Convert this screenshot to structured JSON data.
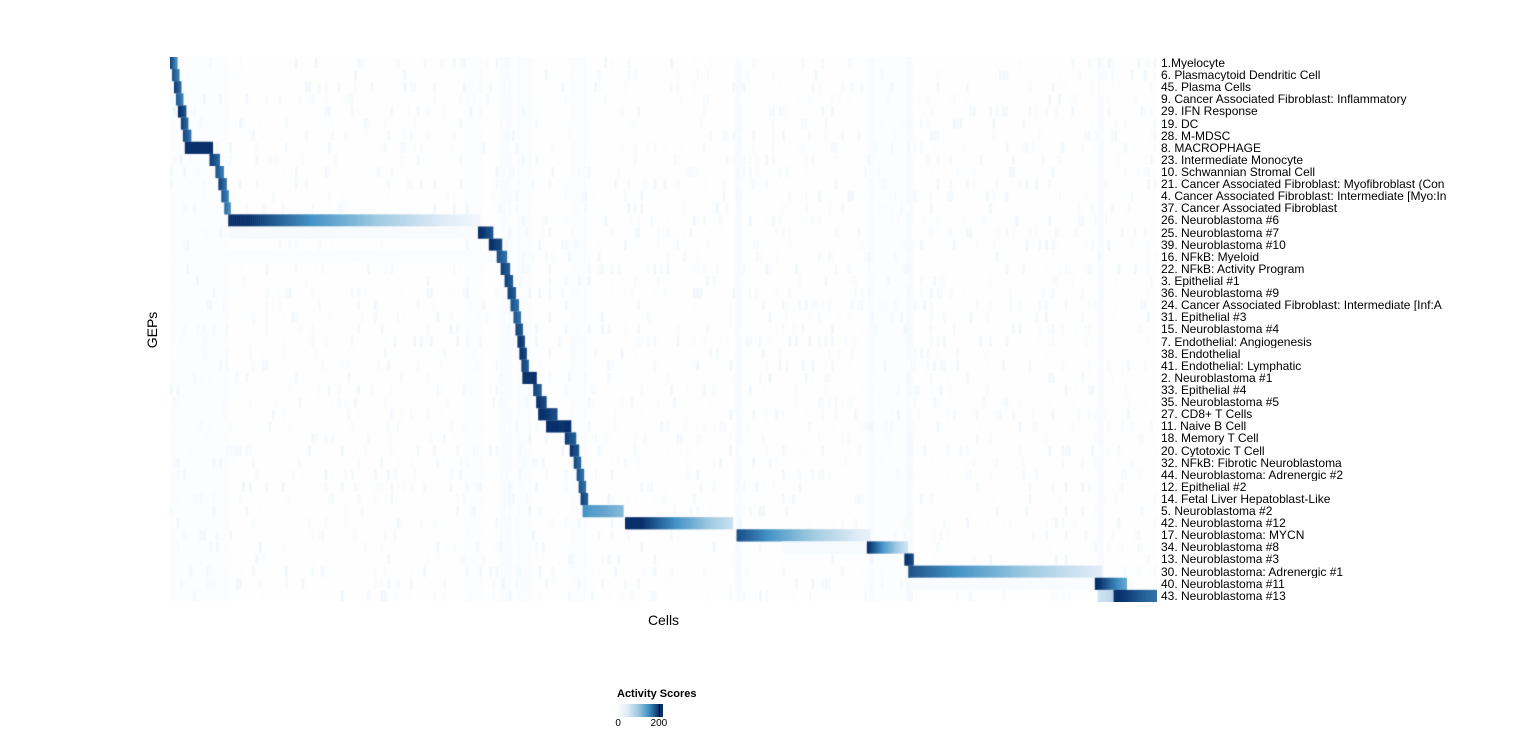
{
  "chart_data": {
    "type": "heatmap",
    "title": "",
    "xlabel": "Cells",
    "ylabel": "GEPs",
    "colorbar": {
      "label": "Activity Scores",
      "min": 0,
      "max": 200
    },
    "value_range": [
      0,
      200
    ],
    "color_scale": {
      "stops": [
        [
          0,
          "#ffffff"
        ],
        [
          0.25,
          "#deebf7"
        ],
        [
          0.5,
          "#9ecae1"
        ],
        [
          0.75,
          "#4292c6"
        ],
        [
          1,
          "#08306b"
        ]
      ]
    },
    "legend_position": "bottom",
    "x_tick_labels": [],
    "rows": [
      {
        "label": "1.Myelocyte",
        "blocks": [
          [
            0.0,
            0.007,
            190,
            150
          ]
        ]
      },
      {
        "label": "6. Plasmacytoid Dendritic Cell",
        "blocks": [
          [
            0.002,
            0.009,
            185,
            160
          ]
        ]
      },
      {
        "label": "45. Plasma Cells",
        "blocks": [
          [
            0.004,
            0.011,
            195,
            170
          ]
        ]
      },
      {
        "label": "9. Cancer Associated Fibroblast: Inflammatory",
        "blocks": [
          [
            0.006,
            0.013,
            180,
            160
          ]
        ]
      },
      {
        "label": "29. IFN Response",
        "blocks": [
          [
            0.008,
            0.016,
            205,
            180
          ]
        ]
      },
      {
        "label": "19. DC",
        "blocks": [
          [
            0.011,
            0.018,
            195,
            170
          ]
        ]
      },
      {
        "label": "28. M-MDSC",
        "blocks": [
          [
            0.013,
            0.021,
            190,
            165
          ]
        ]
      },
      {
        "label": "8. MACROPHAGE",
        "blocks": [
          [
            0.015,
            0.043,
            215,
            200
          ]
        ]
      },
      {
        "label": "23. Intermediate Monocyte",
        "blocks": [
          [
            0.04,
            0.05,
            195,
            170
          ]
        ]
      },
      {
        "label": "10. Schwannian Stromal Cell",
        "blocks": [
          [
            0.046,
            0.054,
            185,
            160
          ]
        ]
      },
      {
        "label": "21. Cancer Associated Fibroblast: Myofibroblast (Con",
        "blocks": [
          [
            0.049,
            0.057,
            195,
            165
          ]
        ]
      },
      {
        "label": "4. Cancer Associated Fibroblast: Intermediate [Myo:In",
        "blocks": [
          [
            0.052,
            0.059,
            185,
            155
          ]
        ]
      },
      {
        "label": "37. Cancer Associated Fibroblast",
        "blocks": [
          [
            0.055,
            0.061,
            175,
            150
          ]
        ]
      },
      {
        "label": "26. Neuroblastoma #6",
        "blocks": [
          [
            0.059,
            0.314,
            215,
            20
          ]
        ]
      },
      {
        "label": "25. Neuroblastoma #7",
        "blocks": [
          [
            0.06,
            0.31,
            14,
            8
          ],
          [
            0.312,
            0.327,
            205,
            180
          ]
        ]
      },
      {
        "label": "39. Neuroblastoma #10",
        "blocks": [
          [
            0.323,
            0.336,
            205,
            185
          ]
        ]
      },
      {
        "label": "16. NFkB: Myeloid",
        "blocks": [
          [
            0.0,
            0.33,
            7,
            7
          ],
          [
            0.331,
            0.341,
            185,
            165
          ]
        ]
      },
      {
        "label": "22. NFkB: Activity Program",
        "blocks": [
          [
            0.335,
            0.344,
            195,
            175
          ]
        ]
      },
      {
        "label": "3. Epithelial #1",
        "blocks": [
          [
            0.339,
            0.347,
            195,
            175
          ]
        ]
      },
      {
        "label": "36. Neuroblastoma #9",
        "blocks": [
          [
            0.342,
            0.35,
            195,
            175
          ]
        ]
      },
      {
        "label": "24. Cancer Associated Fibroblast: Intermediate [Inf:A",
        "blocks": [
          [
            0.345,
            0.353,
            185,
            165
          ]
        ]
      },
      {
        "label": "31. Epithelial #3",
        "blocks": [
          [
            0.348,
            0.355,
            185,
            165
          ]
        ]
      },
      {
        "label": "15. Neuroblastoma #4",
        "blocks": [
          [
            0.35,
            0.357,
            195,
            175
          ]
        ]
      },
      {
        "label": "7. Endothelial: Angiogenesis",
        "blocks": [
          [
            0.352,
            0.359,
            205,
            185
          ]
        ]
      },
      {
        "label": "38. Endothelial",
        "blocks": [
          [
            0.354,
            0.361,
            205,
            185
          ]
        ]
      },
      {
        "label": "41. Endothelial: Lymphatic",
        "blocks": [
          [
            0.356,
            0.363,
            195,
            175
          ]
        ]
      },
      {
        "label": "2. Neuroblastoma #1",
        "blocks": [
          [
            0.357,
            0.371,
            215,
            200
          ]
        ]
      },
      {
        "label": "33. Epithelial #4",
        "blocks": [
          [
            0.368,
            0.376,
            195,
            175
          ]
        ]
      },
      {
        "label": "35. Neuroblastoma #5",
        "blocks": [
          [
            0.371,
            0.381,
            205,
            185
          ]
        ]
      },
      {
        "label": "27. CD8+ T Cells",
        "blocks": [
          [
            0.373,
            0.392,
            205,
            185
          ]
        ]
      },
      {
        "label": "11. Naive B Cell",
        "blocks": [
          [
            0.381,
            0.406,
            215,
            200
          ]
        ]
      },
      {
        "label": "18. Memory T Cell",
        "blocks": [
          [
            0.4,
            0.411,
            195,
            175
          ]
        ]
      },
      {
        "label": "20. Cytotoxic T Cell",
        "blocks": [
          [
            0.405,
            0.414,
            200,
            180
          ]
        ]
      },
      {
        "label": "32. NFkB: Fibrotic Neuroblastoma",
        "blocks": [
          [
            0.409,
            0.416,
            190,
            170
          ]
        ]
      },
      {
        "label": "44. Neuroblastoma: Adrenergic #2",
        "blocks": [
          [
            0.412,
            0.419,
            185,
            165
          ]
        ]
      },
      {
        "label": "12. Epithelial #2",
        "blocks": [
          [
            0.414,
            0.421,
            185,
            165
          ]
        ]
      },
      {
        "label": "14. Fetal Liver Hepatoblast-Like",
        "blocks": [
          [
            0.416,
            0.423,
            195,
            175
          ]
        ]
      },
      {
        "label": "5. Neuroblastoma #2",
        "blocks": [
          [
            0.418,
            0.459,
            150,
            115
          ]
        ]
      },
      {
        "label": "42. Neuroblastoma #12",
        "blocks": [
          [
            0.461,
            0.57,
            225,
            65
          ]
        ]
      },
      {
        "label": "17. Neuroblastoma: MYCN",
        "blocks": [
          [
            0.574,
            0.709,
            185,
            35
          ]
        ]
      },
      {
        "label": "34. Neuroblastoma #8",
        "blocks": [
          [
            0.62,
            0.705,
            12,
            12
          ],
          [
            0.706,
            0.747,
            205,
            60
          ]
        ]
      },
      {
        "label": "13. Neuroblastoma #3",
        "blocks": [
          [
            0.744,
            0.753,
            205,
            185
          ]
        ]
      },
      {
        "label": "30. Neuroblastoma: Adrenergic #1",
        "blocks": [
          [
            0.748,
            0.944,
            185,
            45
          ]
        ]
      },
      {
        "label": "40. Neuroblastoma #11",
        "blocks": [
          [
            0.75,
            0.936,
            10,
            8
          ],
          [
            0.937,
            0.969,
            210,
            130
          ]
        ]
      },
      {
        "label": "43. Neuroblastoma #13",
        "blocks": [
          [
            0.94,
            0.956,
            60,
            80
          ],
          [
            0.956,
            1.0,
            205,
            165
          ]
        ]
      }
    ],
    "stripes": [
      [
        0.0,
        0.06,
        5
      ],
      [
        0.298,
        0.316,
        6
      ],
      [
        0.335,
        0.346,
        9
      ],
      [
        0.352,
        0.366,
        7
      ],
      [
        0.405,
        0.421,
        7
      ],
      [
        0.573,
        0.579,
        11
      ],
      [
        0.708,
        0.713,
        9
      ],
      [
        0.713,
        0.744,
        5
      ],
      [
        0.746,
        0.752,
        12
      ],
      [
        0.94,
        0.946,
        9
      ]
    ],
    "noise": {
      "seed": 7,
      "columns": 300
    }
  }
}
